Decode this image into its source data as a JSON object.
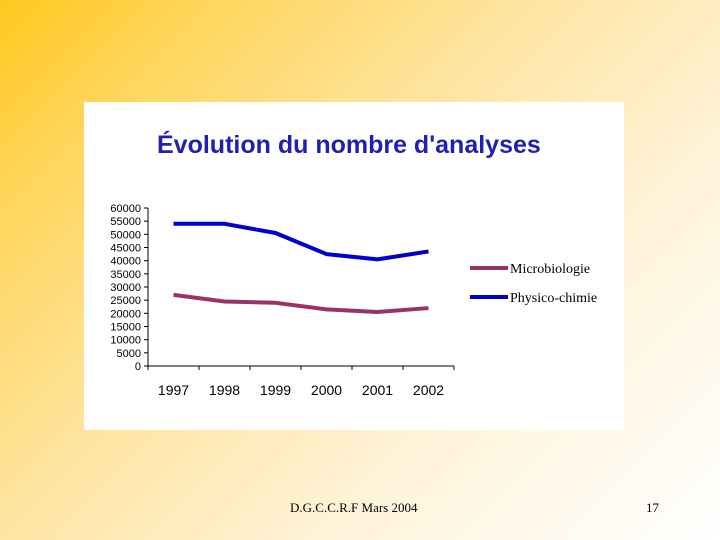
{
  "chart_data": {
    "type": "line",
    "title": "Évolution du nombre d'analyses",
    "xlabel": "",
    "ylabel": "",
    "categories": [
      "1997",
      "1998",
      "1999",
      "2000",
      "2001",
      "2002"
    ],
    "ylim": [
      0,
      60000
    ],
    "yticks": [
      0,
      5000,
      10000,
      15000,
      20000,
      25000,
      30000,
      35000,
      40000,
      45000,
      50000,
      55000,
      60000
    ],
    "grid": false,
    "legend": "right",
    "series": [
      {
        "name": "Microbiologie",
        "color": "#993366",
        "values": [
          27000,
          24500,
          24000,
          21500,
          20500,
          22000
        ]
      },
      {
        "name": "Physico-chimie",
        "color": "#0000cc",
        "values": [
          54000,
          54000,
          50500,
          42500,
          40500,
          43500
        ]
      }
    ]
  },
  "footer": {
    "left": "D.G.C.C.R.F Mars 2004",
    "right": "17"
  }
}
